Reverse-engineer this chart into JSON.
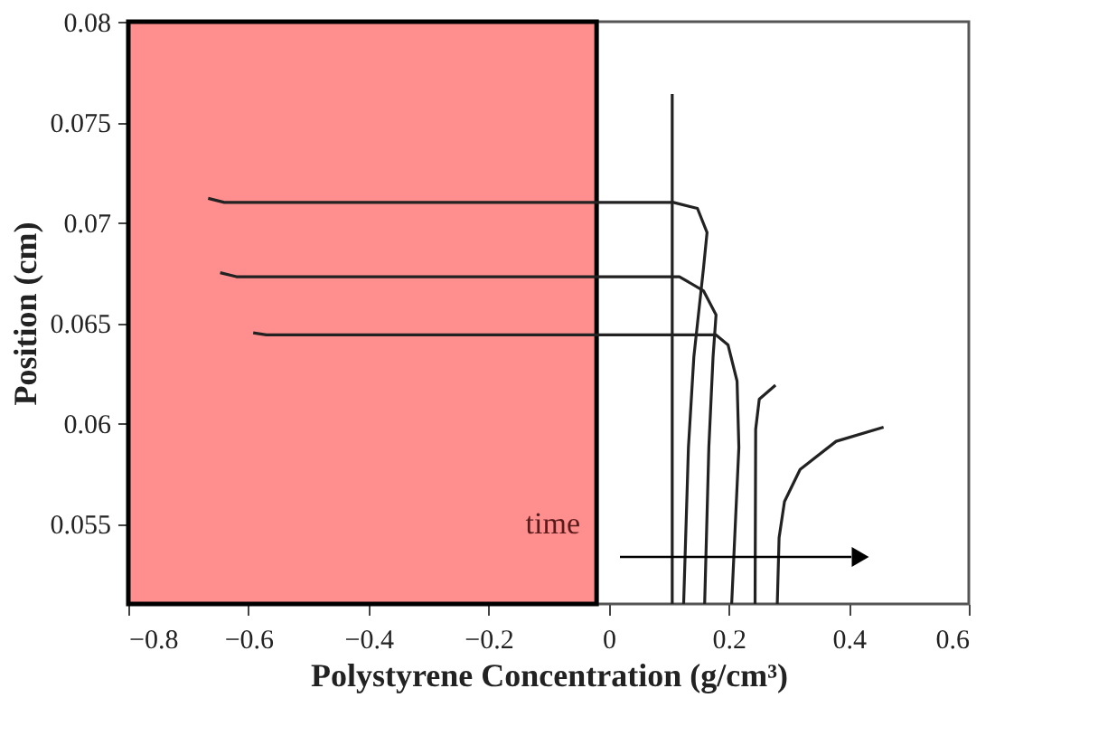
{
  "chart_data": {
    "type": "line",
    "xlabel": "Polystyrene Concentration (g/cm³)",
    "ylabel": "Position (cm)",
    "xlim": [
      -0.8,
      0.6
    ],
    "xticks": [
      -0.8,
      -0.6,
      -0.4,
      -0.2,
      0,
      0.2,
      0.4,
      0.6
    ],
    "ylim": [
      0.051,
      0.08
    ],
    "yticks": [
      0.055,
      0.06,
      0.065,
      0.07,
      0.075,
      0.08
    ],
    "grid": false,
    "marker": "none",
    "line_style": "solid",
    "bands": [
      {
        "axis": "x",
        "from": -0.8,
        "to": -0.02,
        "color": "#ff8f8f"
      }
    ],
    "annotations": [
      "time"
    ],
    "series": [
      {
        "color": "#222222",
        "x": [
          0.106,
          0.106
        ],
        "values": [
          0.0764,
          0.051
        ]
      },
      {
        "color": "#222222",
        "x": [
          -0.667,
          -0.64,
          -0.3,
          0.108,
          0.148,
          0.164,
          0.158,
          0.142,
          0.133,
          0.125
        ],
        "values": [
          0.0712,
          0.071,
          0.071,
          0.071,
          0.0707,
          0.0695,
          0.0677,
          0.0633,
          0.0588,
          0.051
        ]
      },
      {
        "color": "#222222",
        "x": [
          -0.647,
          -0.62,
          -0.3,
          0.118,
          0.158,
          0.179,
          0.174,
          0.167,
          0.16
        ],
        "values": [
          0.0675,
          0.0673,
          0.0673,
          0.0673,
          0.0666,
          0.0654,
          0.0633,
          0.0588,
          0.051
        ]
      },
      {
        "color": "#222222",
        "x": [
          -0.592,
          -0.57,
          -0.3,
          0.179,
          0.199,
          0.214,
          0.217,
          0.205
        ],
        "values": [
          0.0645,
          0.0644,
          0.0644,
          0.0644,
          0.0639,
          0.0621,
          0.0588,
          0.051
        ]
      },
      {
        "color": "#222222",
        "x": [
          0.278,
          0.251,
          0.245,
          0.244
        ],
        "values": [
          0.0619,
          0.0612,
          0.0597,
          0.051
        ]
      },
      {
        "color": "#222222",
        "x": [
          0.458,
          0.379,
          0.319,
          0.293,
          0.284,
          0.281
        ],
        "values": [
          0.0598,
          0.0591,
          0.0577,
          0.0561,
          0.0543,
          0.051
        ]
      }
    ]
  }
}
